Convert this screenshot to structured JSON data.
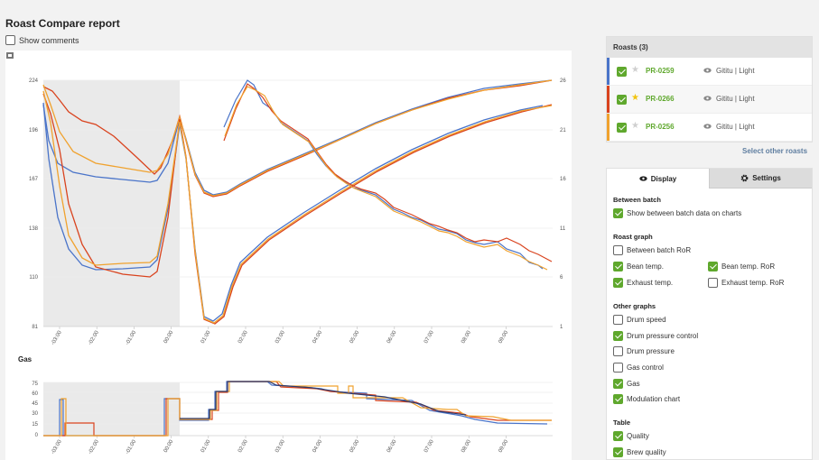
{
  "page": {
    "title": "Roast Compare report",
    "show_comments_label": "Show comments",
    "show_comments_checked": false
  },
  "chart": {
    "left_axis_ticks": [
      "224",
      "196",
      "167",
      "138",
      "110",
      "81"
    ],
    "right_axis_ticks": [
      "26",
      "21",
      "16",
      "11",
      "6",
      "1"
    ],
    "x_ticks": [
      "-03:00",
      "-02:00",
      "-01:00",
      "00:00",
      "01:00",
      "02:00",
      "03:00",
      "04:00",
      "05:00",
      "06:00",
      "07:00",
      "08:00",
      "09:00"
    ],
    "gas_title": "Gas",
    "gas_y_ticks": [
      "75",
      "60",
      "45",
      "30",
      "15",
      "0"
    ],
    "colors": {
      "blue": "#4a74c9",
      "red": "#d9431e",
      "orange": "#f0a22e",
      "navy": "#2d3b6e"
    }
  },
  "roasts": {
    "header": "Roasts (3)",
    "items": [
      {
        "id": "PR-0259",
        "bean": "Gititu | Light",
        "color": "#4a74c9",
        "starred": false,
        "checked": true
      },
      {
        "id": "PR-0266",
        "bean": "Gititu | Light",
        "color": "#d9431e",
        "starred": true,
        "checked": true
      },
      {
        "id": "PR-0256",
        "bean": "Gititu | Light",
        "color": "#f0a22e",
        "starred": false,
        "checked": true
      }
    ],
    "select_other": "Select other roasts"
  },
  "settings": {
    "tab_display": "Display",
    "tab_settings": "Settings",
    "sections": {
      "between_batch": "Between batch",
      "roast_graph": "Roast graph",
      "other_graphs": "Other graphs",
      "table": "Table"
    },
    "options": {
      "show_between": "Show between batch data on charts",
      "between_ror": "Between batch RoR",
      "bean_temp": "Bean temp.",
      "bean_temp_ror": "Bean temp. RoR",
      "exhaust_temp": "Exhaust temp.",
      "exhaust_temp_ror": "Exhaust temp. RoR",
      "drum_speed": "Drum speed",
      "drum_pressure_control": "Drum pressure control",
      "drum_pressure": "Drum pressure",
      "gas_control": "Gas control",
      "gas": "Gas",
      "modulation_chart": "Modulation chart",
      "quality": "Quality",
      "brew_quality": "Brew quality"
    }
  }
}
